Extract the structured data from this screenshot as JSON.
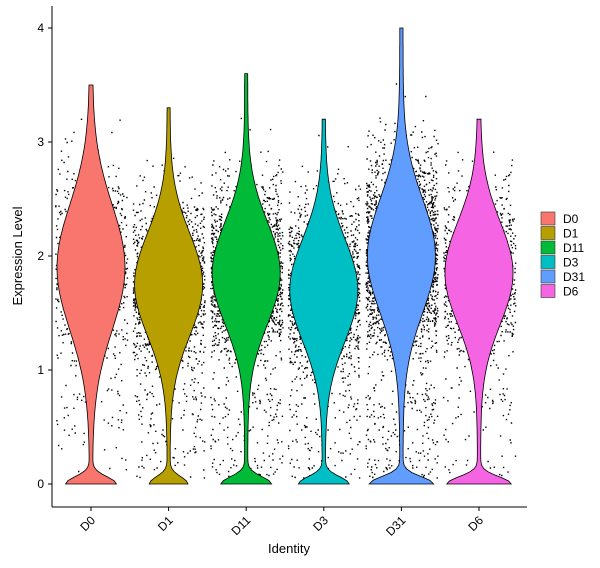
{
  "chart_data": {
    "type": "violin",
    "xlabel": "Identity",
    "ylabel": "Expression Level",
    "ylim": [
      -0.2,
      4.2
    ],
    "yticks": [
      0,
      1,
      2,
      3,
      4
    ],
    "categories": [
      "D0",
      "D1",
      "D11",
      "D3",
      "D31",
      "D6"
    ],
    "colors": {
      "D0": "#F8766D",
      "D1": "#B79F00",
      "D11": "#00BA38",
      "D3": "#00BFC4",
      "D31": "#619CFF",
      "D6": "#F564E3"
    },
    "legend": {
      "placement": "right",
      "entries": [
        "D0",
        "D1",
        "D11",
        "D3",
        "D31",
        "D6"
      ]
    },
    "series": [
      {
        "name": "D0",
        "zero_fraction": 0.25,
        "mode": 1.9,
        "spread": 0.55,
        "max": 3.5,
        "point_count": 700
      },
      {
        "name": "D1",
        "zero_fraction": 0.2,
        "mode": 1.75,
        "spread": 0.45,
        "max": 3.3,
        "point_count": 1400
      },
      {
        "name": "D11",
        "zero_fraction": 0.25,
        "mode": 1.85,
        "spread": 0.45,
        "max": 3.6,
        "point_count": 1800
      },
      {
        "name": "D3",
        "zero_fraction": 0.25,
        "mode": 1.7,
        "spread": 0.45,
        "max": 3.2,
        "point_count": 1600
      },
      {
        "name": "D31",
        "zero_fraction": 0.3,
        "mode": 2.0,
        "spread": 0.5,
        "max": 4.0,
        "point_count": 2600
      },
      {
        "name": "D6",
        "zero_fraction": 0.3,
        "mode": 1.85,
        "spread": 0.45,
        "max": 3.2,
        "point_count": 900
      }
    ]
  }
}
